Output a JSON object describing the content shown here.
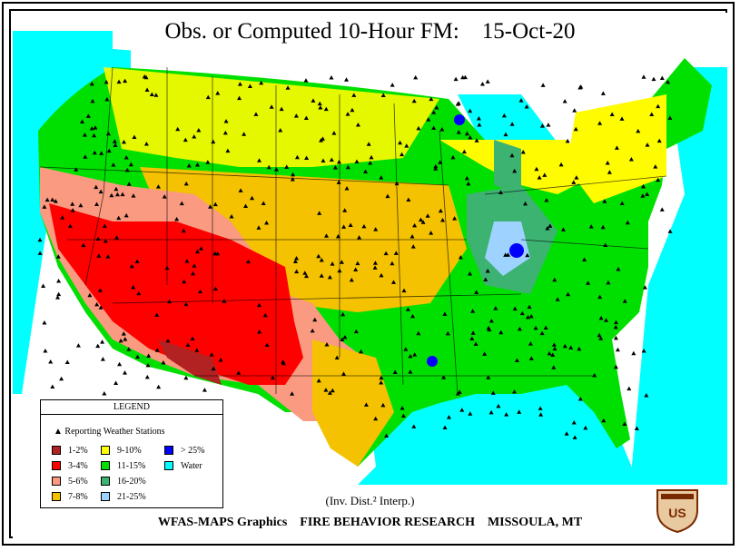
{
  "title": "Obs. or Computed 10-Hour FM:",
  "date": "15-Oct-20",
  "legend": {
    "heading": "LEGEND",
    "stations_label": "Reporting Weather Stations",
    "items": [
      {
        "label": "1-2%",
        "color": "#b22222"
      },
      {
        "label": "3-4%",
        "color": "#ff0000"
      },
      {
        "label": "5-6%",
        "color": "#fa9a80"
      },
      {
        "label": "7-8%",
        "color": "#f4c200"
      },
      {
        "label": "9-10%",
        "color": "#ffff00"
      },
      {
        "label": "11-15%",
        "color": "#00e000"
      },
      {
        "label": "16-20%",
        "color": "#3cb371"
      },
      {
        "label": "21-25%",
        "color": "#9ed2ff"
      },
      {
        "label": "> 25%",
        "color": "#0000ff"
      },
      {
        "label": "Water",
        "color": "#00ffff"
      }
    ]
  },
  "method_text": "(Inv. Dist.² Interp.)",
  "footer": {
    "left": "WFAS-MAPS Graphics",
    "middle": "FIRE BEHAVIOR RESEARCH",
    "right": "MISSOULA, MT"
  },
  "logo_text": "US"
}
